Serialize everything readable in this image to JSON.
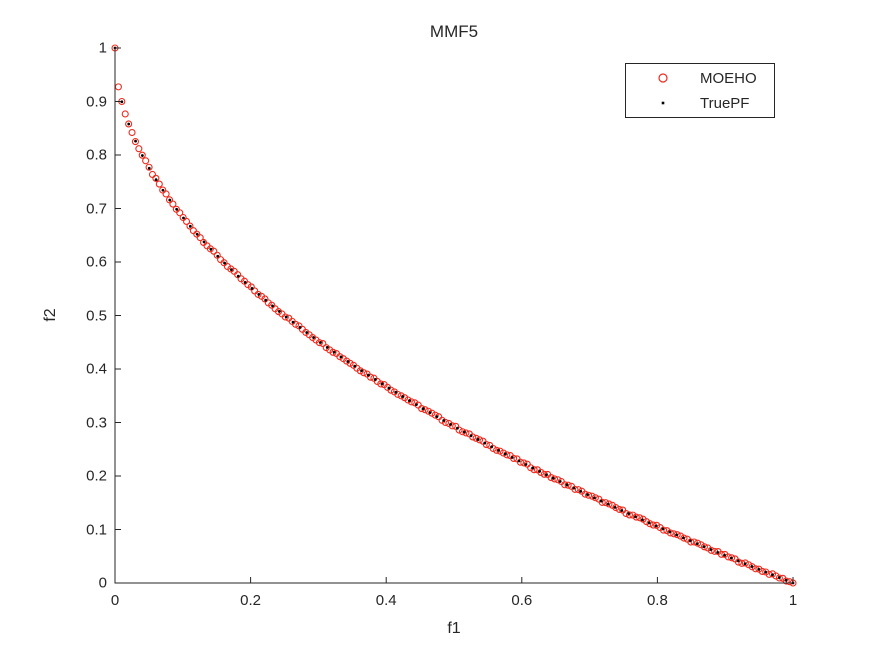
{
  "figure": {
    "background": "#ffffff",
    "axis_color": "#262626",
    "text_color": "#262626"
  },
  "chart_data": {
    "type": "scatter",
    "title": "MMF5",
    "xlabel": "f1",
    "ylabel": "f2",
    "xlim": [
      0,
      1
    ],
    "ylim": [
      0,
      1
    ],
    "xticks": [
      0,
      0.2,
      0.4,
      0.6,
      0.8,
      1
    ],
    "xtick_labels": [
      "0",
      "0.2",
      "0.4",
      "0.6",
      "0.8",
      "1"
    ],
    "yticks": [
      0,
      0.1,
      0.2,
      0.3,
      0.4,
      0.5,
      0.6,
      0.7,
      0.8,
      0.9,
      1
    ],
    "ytick_labels": [
      "0",
      "0.1",
      "0.2",
      "0.3",
      "0.4",
      "0.5",
      "0.6",
      "0.7",
      "0.8",
      "0.9",
      "1"
    ],
    "grid": false,
    "box": false,
    "tick_direction": "in",
    "pareto_front_formula": "f2 = 1 - sqrt(f1)",
    "legend": {
      "position": "top-right",
      "border_color": "#262626",
      "items": [
        {
          "label": "MOEHO",
          "marker": "open-circle",
          "color": "#f22a1d"
        },
        {
          "label": "TruePF",
          "marker": "point",
          "color": "#000000"
        }
      ]
    },
    "series": [
      {
        "name": "MOEHO",
        "marker": "open-circle",
        "color": "#f22a1d",
        "n_points": 200,
        "x_min": 0,
        "x_max": 1,
        "x_spacing": "uniform",
        "y_formula": {
          "intercept": 1,
          "coef": -1,
          "power": 0.5
        },
        "marker_radius": 3,
        "stroke_width": 1.1,
        "jitter": 0.002
      },
      {
        "name": "TruePF",
        "marker": "point",
        "color": "#000000",
        "n_points": 100,
        "x_min": 0,
        "x_max": 1,
        "x_spacing": "uniform",
        "y_formula": {
          "intercept": 1,
          "coef": -1,
          "power": 0.5
        },
        "marker_radius": 1.4,
        "stroke_width": 0,
        "jitter": 0
      }
    ]
  }
}
